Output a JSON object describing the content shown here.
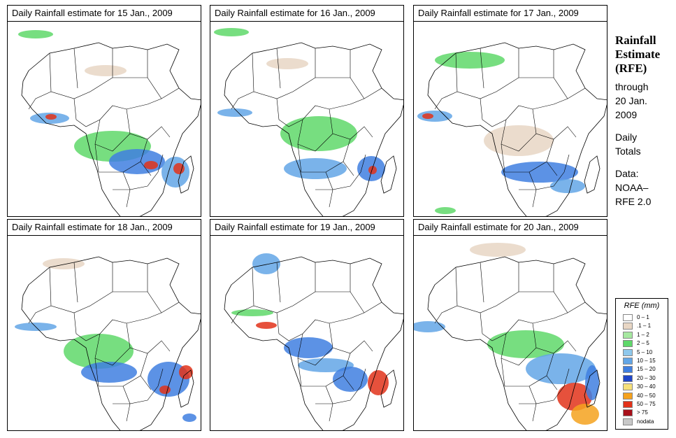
{
  "panels": [
    {
      "title": "Daily Rainfall estimate for  15 Jan., 2009"
    },
    {
      "title": "Daily Rainfall estimate for  16 Jan., 2009"
    },
    {
      "title": "Daily Rainfall estimate for  17 Jan., 2009"
    },
    {
      "title": "Daily Rainfall estimate for  18 Jan., 2009"
    },
    {
      "title": "Daily Rainfall estimate for  19 Jan., 2009"
    },
    {
      "title": "Daily Rainfall estimate for  20 Jan., 2009"
    }
  ],
  "sidebar": {
    "title_line1": "Rainfall",
    "title_line2": "Estimate",
    "title_line3": "(RFE)",
    "through": "through",
    "date_line1": "20 Jan.",
    "date_line2": "2009",
    "daily": "Daily",
    "totals": "Totals",
    "data_label": "Data:",
    "source_line1": "NOAA–",
    "source_line2": "RFE 2.0"
  },
  "legend": {
    "title": "RFE (mm)",
    "entries": [
      {
        "label": "0 – 1",
        "color": "#ffffff"
      },
      {
        "label": ".1 – 1",
        "color": "#e8d6c4"
      },
      {
        "label": "1 – 2",
        "color": "#a6e8a0"
      },
      {
        "label": "2 – 5",
        "color": "#5fd86a"
      },
      {
        "label": "5 – 10",
        "color": "#8fc8ec"
      },
      {
        "label": "10 – 15",
        "color": "#63a6e6"
      },
      {
        "label": "15 – 20",
        "color": "#3f7fe0"
      },
      {
        "label": "20 – 30",
        "color": "#1f46c8"
      },
      {
        "label": "30 – 40",
        "color": "#f6e07a"
      },
      {
        "label": "40 – 50",
        "color": "#f5a21e"
      },
      {
        "label": "50 – 75",
        "color": "#e2321a"
      },
      {
        "label": "> 75",
        "color": "#a8101a"
      },
      {
        "label": "nodata",
        "color": "#c8c8c8"
      }
    ]
  }
}
